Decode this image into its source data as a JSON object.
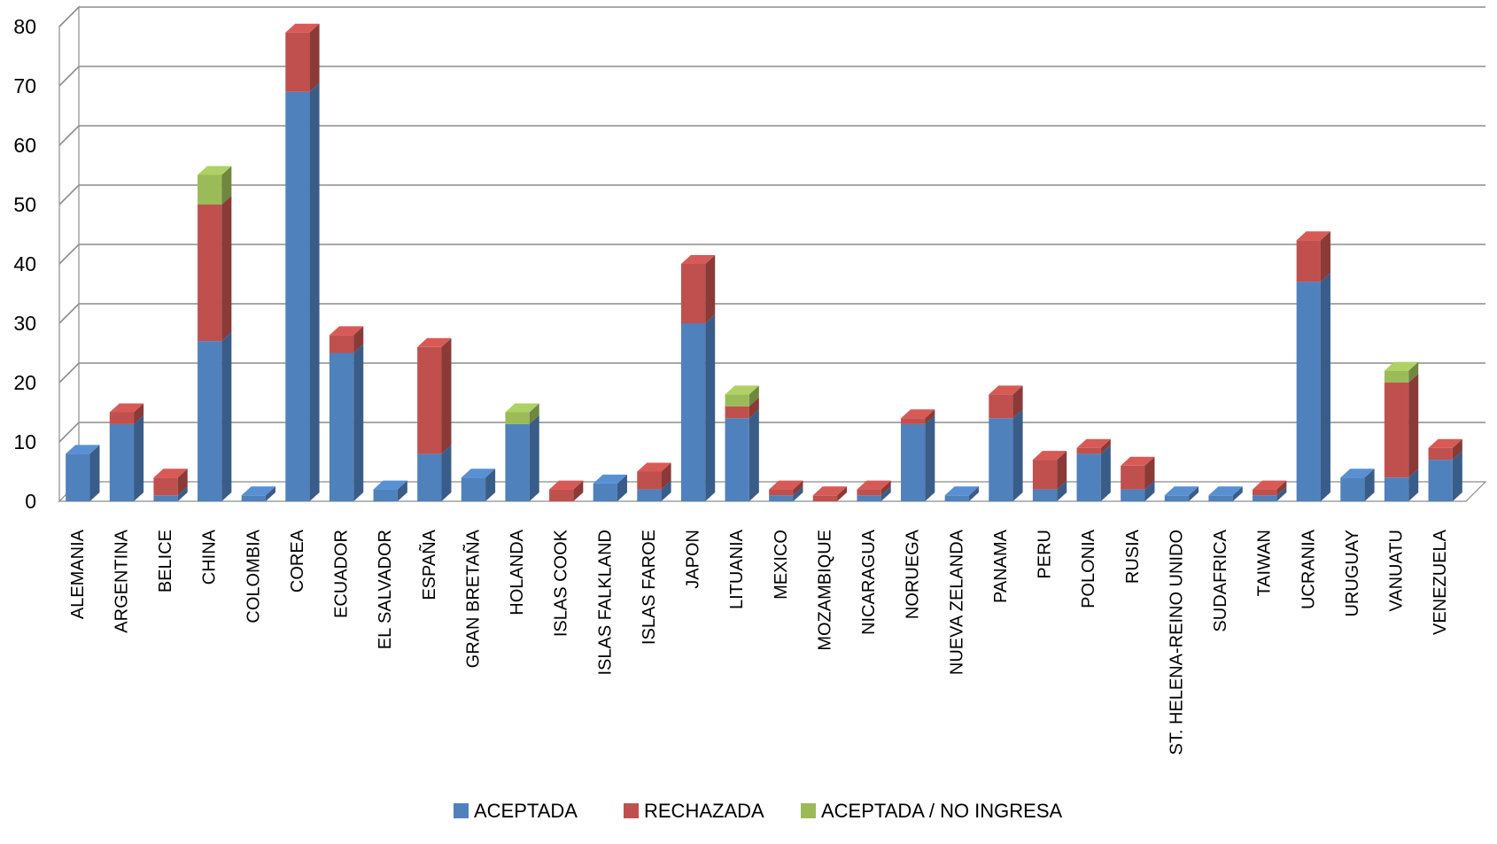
{
  "chart_data": {
    "type": "bar",
    "stacked": true,
    "three_d": true,
    "categories": [
      "ALEMANIA",
      "ARGENTINA",
      "BELICE",
      "CHINA",
      "COLOMBIA",
      "COREA",
      "ECUADOR",
      "EL SALVADOR",
      "ESPAÑA",
      "GRAN BRETAÑA",
      "HOLANDA",
      "ISLAS COOK",
      "ISLAS FALKLAND",
      "ISLAS FAROE",
      "JAPON",
      "LITUANIA",
      "MEXICO",
      "MOZAMBIQUE",
      "NICARAGUA",
      "NORUEGA",
      "NUEVA  ZELANDA",
      "PANAMA",
      "PERU",
      "POLONIA",
      "RUSIA",
      "ST. HELENA-REINO  UNIDO",
      "SUDAFRICA",
      "TAIWAN",
      "UCRANIA",
      "URUGUAY",
      "VANUATU",
      "VENEZUELA"
    ],
    "series": [
      {
        "name": "ACEPTADA",
        "color": "#4F81BD",
        "values": [
          8,
          13,
          1,
          27,
          1,
          69,
          25,
          2,
          8,
          4,
          13,
          0,
          3,
          2,
          30,
          14,
          1,
          0,
          1,
          13,
          1,
          14,
          2,
          8,
          2,
          1,
          1,
          1,
          37,
          4,
          4,
          7
        ]
      },
      {
        "name": "RECHAZADA",
        "color": "#C0504D",
        "values": [
          0,
          2,
          3,
          23,
          0,
          10,
          3,
          0,
          18,
          0,
          0,
          2,
          0,
          3,
          10,
          2,
          1,
          1,
          1,
          1,
          0,
          4,
          5,
          1,
          4,
          0,
          0,
          1,
          7,
          0,
          16,
          2
        ]
      },
      {
        "name": "ACEPTADA / NO INGRESA",
        "color": "#9BBB59",
        "values": [
          0,
          0,
          0,
          5,
          0,
          0,
          0,
          0,
          0,
          0,
          2,
          0,
          0,
          0,
          0,
          2,
          0,
          0,
          0,
          0,
          0,
          0,
          0,
          0,
          0,
          0,
          0,
          0,
          0,
          0,
          2,
          0
        ]
      }
    ],
    "yticks": [
      "0",
      "10",
      "20",
      "30",
      "40",
      "50",
      "60",
      "70",
      "80"
    ],
    "ylim": [
      0,
      80
    ],
    "grid": true,
    "legend_position": "bottom"
  }
}
